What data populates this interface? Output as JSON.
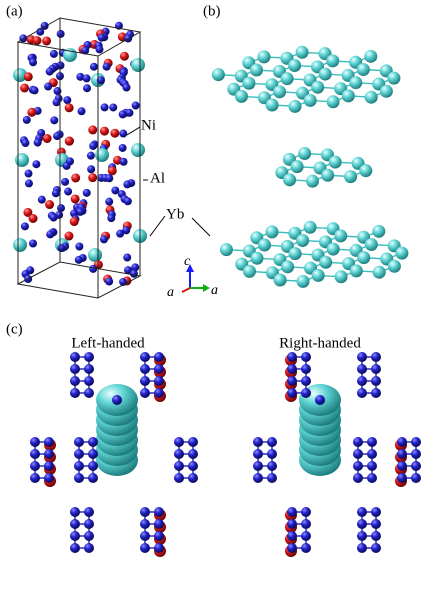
{
  "panels": {
    "a": {
      "label": "(a)",
      "atoms": {
        "ni": "Ni",
        "al": "Al",
        "yb": "Yb"
      },
      "axes": {
        "c": "c",
        "a1": "a",
        "a2": "a"
      }
    },
    "b": {
      "label": "(b)"
    },
    "c": {
      "label": "(c)",
      "left": "Left-handed",
      "right": "Right-handed"
    }
  }
}
